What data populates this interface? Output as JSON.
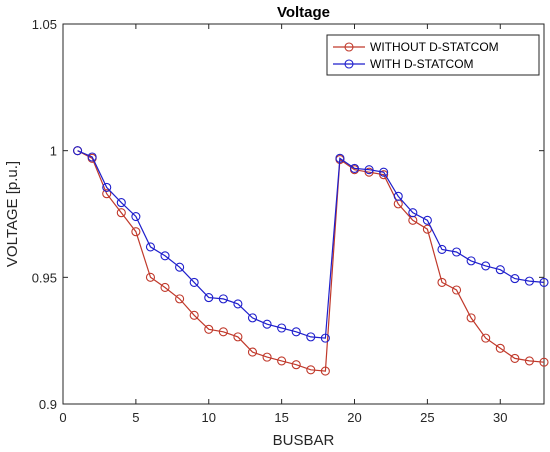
{
  "chart_data": {
    "type": "line",
    "title": "Voltage",
    "xlabel": "BUSBAR",
    "ylabel": "VOLTAGE [p.u.]",
    "xlim": [
      0,
      33
    ],
    "ylim": [
      0.9,
      1.05
    ],
    "xticks": [
      0,
      5,
      10,
      15,
      20,
      25,
      30
    ],
    "yticks": [
      0.9,
      0.95,
      1,
      1.05
    ],
    "ytick_labels": [
      "0.9",
      "0.95",
      "1",
      "1.05"
    ],
    "grid": false,
    "legend_position": "top-right",
    "x": [
      1,
      2,
      3,
      4,
      5,
      6,
      7,
      8,
      9,
      10,
      11,
      12,
      13,
      14,
      15,
      16,
      17,
      18,
      19,
      20,
      21,
      22,
      23,
      24,
      25,
      26,
      27,
      28,
      29,
      30,
      31,
      32,
      33
    ],
    "series": [
      {
        "name": "WITHOUT D-STATCOM",
        "color": "#c0392b",
        "values": [
          1.0,
          0.997,
          0.983,
          0.9755,
          0.968,
          0.95,
          0.946,
          0.9415,
          0.935,
          0.9295,
          0.9285,
          0.9265,
          0.9205,
          0.9185,
          0.917,
          0.9155,
          0.9135,
          0.913,
          0.9965,
          0.9925,
          0.9915,
          0.9905,
          0.979,
          0.9725,
          0.969,
          0.948,
          0.945,
          0.934,
          0.926,
          0.922,
          0.918,
          0.917,
          0.9165
        ]
      },
      {
        "name": "WITH D-STATCOM",
        "color": "#1f1fcc",
        "values": [
          1.0,
          0.9975,
          0.9855,
          0.9795,
          0.974,
          0.962,
          0.9585,
          0.954,
          0.948,
          0.942,
          0.9415,
          0.9395,
          0.934,
          0.9315,
          0.93,
          0.9285,
          0.9265,
          0.926,
          0.997,
          0.993,
          0.9925,
          0.9915,
          0.982,
          0.9755,
          0.9725,
          0.961,
          0.96,
          0.9565,
          0.9545,
          0.953,
          0.9495,
          0.9485,
          0.948
        ]
      }
    ]
  }
}
